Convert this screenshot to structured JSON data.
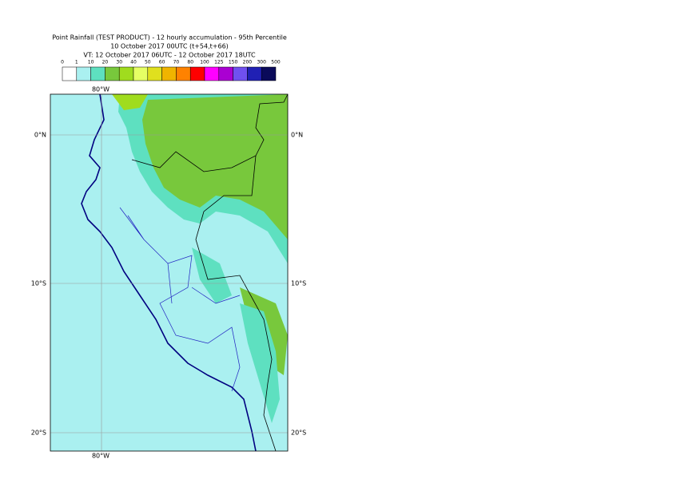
{
  "header": {
    "title": "Point Rainfall (TEST PRODUCT) - 12 hourly accumulation - 95th Percentile",
    "issue": "10 October 2017 00UTC (t+54,t+66)",
    "valid": "VT: 12 October 2017 06UTC - 12 October 2017 18UTC"
  },
  "legend": {
    "labels": [
      0,
      1,
      10,
      20,
      30,
      40,
      50,
      60,
      70,
      80,
      100,
      125,
      150,
      200,
      300,
      500
    ],
    "colors": [
      "#ffffff",
      "#aaf0f0",
      "#5ee0c0",
      "#78c83c",
      "#a0dc1e",
      "#e6ff64",
      "#e0e01e",
      "#f0b400",
      "#ff8200",
      "#ff0000",
      "#ff00ff",
      "#aa00d2",
      "#7050f0",
      "#2020b4",
      "#0a0a5a"
    ]
  },
  "map": {
    "lon_labels": [
      "80°W"
    ],
    "lat_labels": [
      "0°N",
      "10°S",
      "20°S"
    ]
  }
}
